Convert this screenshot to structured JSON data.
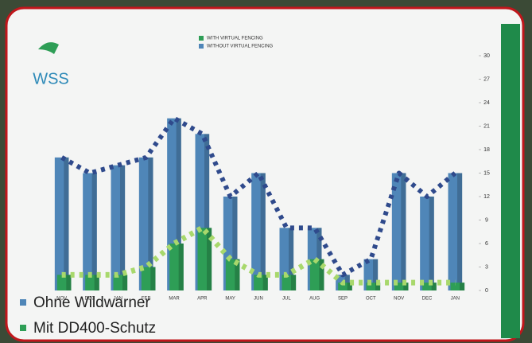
{
  "logo": "WSS",
  "overlay_legend": [
    "Ohne Wildwarner",
    "Mit DD400-Schutz"
  ],
  "chart_data": {
    "type": "bar",
    "categories": [
      "NOV",
      "DEC",
      "JAN",
      "FEB",
      "MAR",
      "APR",
      "MAY",
      "JUN",
      "JUL",
      "AUG",
      "SEP",
      "OCT",
      "NOV",
      "DEC",
      "JAN"
    ],
    "series": [
      {
        "name": "WITHOUT VIRTUAL FENCING",
        "color": "#4f86b8",
        "line_color": "#2f4a8c",
        "values": [
          17,
          15,
          16,
          17,
          22,
          20,
          12,
          15,
          8,
          8,
          2,
          4,
          15,
          12,
          15
        ]
      },
      {
        "name": "WITH VIRTUAL FENCING",
        "color": "#2e9e56",
        "line_color": "#a8d86c",
        "values": [
          2,
          2,
          2,
          3,
          6,
          8,
          4,
          2,
          2,
          4,
          1,
          1,
          1,
          1,
          1
        ]
      }
    ],
    "ylim": [
      0,
      30
    ],
    "yticks": [
      0,
      3,
      6,
      9,
      12,
      15,
      18,
      21,
      24,
      27,
      30
    ],
    "grid": false
  }
}
